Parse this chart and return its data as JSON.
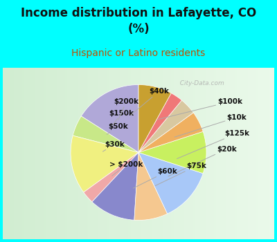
{
  "title": "Income distribution in Lafayette, CO\n(%)",
  "subtitle": "Hispanic or Latino residents",
  "background_color": "#00FFFF",
  "labels": [
    "$100k",
    "$10k",
    "$125k",
    "$20k",
    "$75k",
    "$60k",
    "> $200k",
    "$30k",
    "$50k",
    "$150k",
    "$200k",
    "$40k"
  ],
  "values": [
    16,
    5,
    14,
    3,
    11,
    8,
    13,
    10,
    5,
    4,
    3,
    8
  ],
  "colors": [
    "#b0a8d8",
    "#c8e888",
    "#f0f080",
    "#f0a8a8",
    "#8888cc",
    "#f5c890",
    "#a8c8f8",
    "#c8f060",
    "#f0b060",
    "#d8c8a0",
    "#f07878",
    "#c8a030"
  ],
  "label_fontsize": 7.5,
  "title_fontsize": 12,
  "subtitle_fontsize": 10,
  "subtitle_color": "#c05000",
  "title_color": "#111111",
  "watermark": "  City-Data.com",
  "watermark_color": "#aaaaaa",
  "startangle": 90
}
